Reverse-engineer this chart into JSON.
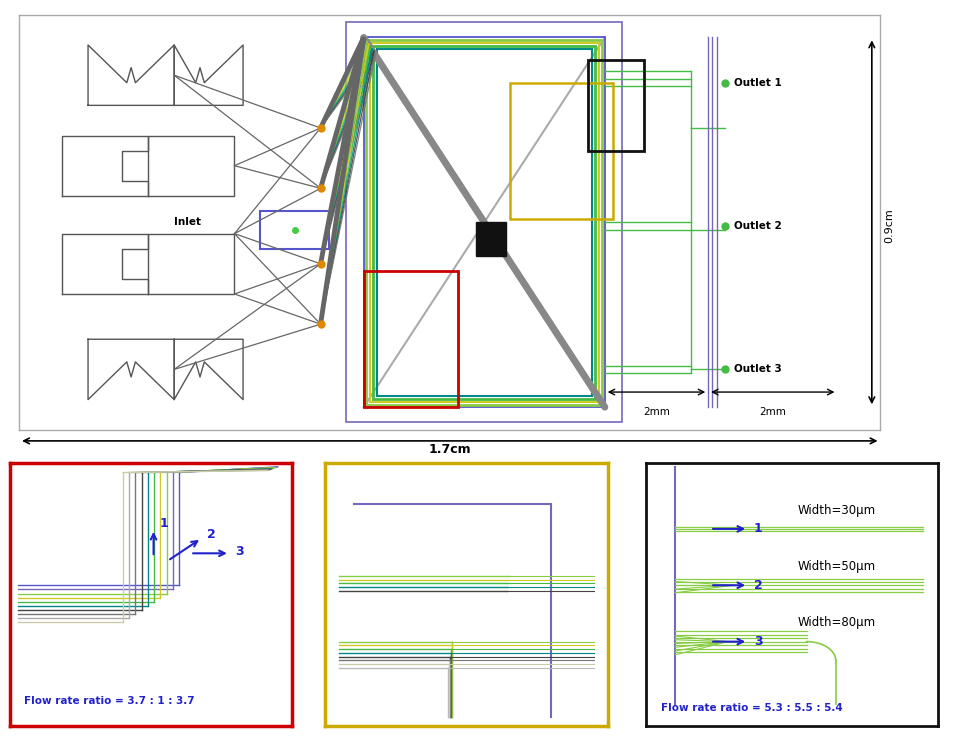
{
  "fig_width": 9.57,
  "fig_height": 7.41,
  "colors": {
    "blue": "#5555cc",
    "light_blue": "#7766bb",
    "green": "#44bb44",
    "light_green": "#88cc44",
    "yellow": "#cccc22",
    "teal": "#008888",
    "gray": "#777777",
    "dark_gray": "#444444",
    "orange": "#dd8800",
    "black": "#111111",
    "red": "#cc0000",
    "gold": "#ccaa00",
    "shape_gray": "#555555"
  },
  "labels": {
    "inlet": "Inlet",
    "outlet1": "Outlet 1",
    "outlet2": "Outlet 2",
    "outlet3": "Outlet 3",
    "dim_17cm": "1.7cm",
    "dim_09cm": "0.9cm",
    "dim_2mm_1": "2mm",
    "dim_2mm_2": "2mm",
    "flow1": "Flow rate ratio = 3.7 : 1 : 3.7",
    "flow3": "Flow rate ratio = 5.3 : 5.5 : 5.4",
    "w1": "Width=30μm",
    "w2": "Width=50μm",
    "w3": "Width=80μm"
  }
}
